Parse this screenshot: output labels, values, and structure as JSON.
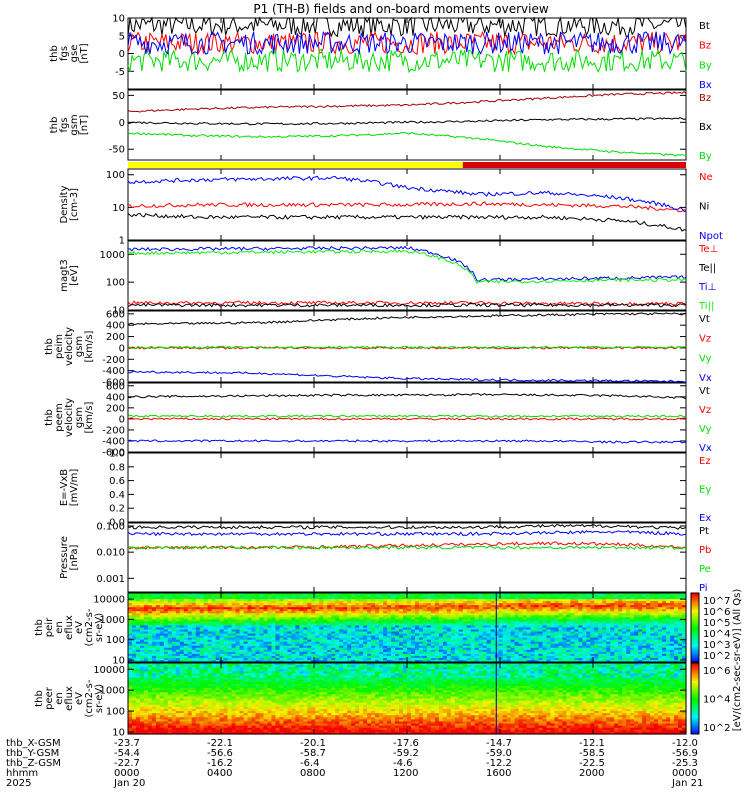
{
  "title": "P1 (TH-B) fields and on-board moments overview",
  "colors": {
    "black": "#000000",
    "red": "#ff0000",
    "green": "#00dd00",
    "blue": "#0000ff",
    "darkred": "#a00000",
    "yellow": "#ffff00",
    "bar_red": "#dd0000",
    "lightgreen": "#11ee11"
  },
  "chart_data": [
    {
      "id": "fgs-gse",
      "type": "line",
      "ylabel": [
        "thb",
        "fgs",
        "gse",
        "[nT]"
      ],
      "ylim": [
        -10,
        10
      ],
      "yticks": [
        -5,
        0,
        5,
        10
      ],
      "series": [
        {
          "name": "Bt",
          "color": "#000000",
          "level": 8
        },
        {
          "name": "Bz",
          "color": "#ff0000",
          "level": 3
        },
        {
          "name": "By",
          "color": "#00dd00",
          "level": -2
        },
        {
          "name": "Bx",
          "color": "#0000ff",
          "level": 3
        }
      ]
    },
    {
      "id": "fgs-gsm",
      "type": "line",
      "ylabel": [
        "thb",
        "fgs",
        "gsm",
        "[nT]"
      ],
      "ylim": [
        -70,
        60
      ],
      "yticks": [
        -50,
        0,
        50
      ],
      "series": [
        {
          "name": "Bz",
          "color": "#a00000",
          "values": [
            20,
            25,
            28,
            30,
            32,
            38,
            45,
            52,
            55
          ]
        },
        {
          "name": "Bx",
          "color": "#000000",
          "values": [
            0,
            -2,
            -3,
            -2,
            0,
            2,
            5,
            6,
            7
          ]
        },
        {
          "name": "By",
          "color": "#00dd00",
          "values": [
            -20,
            -25,
            -27,
            -25,
            -20,
            -30,
            -45,
            -55,
            -62
          ]
        }
      ]
    },
    {
      "id": "mode-bar",
      "type": "bar",
      "segments": [
        {
          "from": 0,
          "to": 0.6,
          "color": "#ffff00"
        },
        {
          "from": 0.6,
          "to": 1,
          "color": "#dd0000"
        }
      ]
    },
    {
      "id": "density",
      "type": "line",
      "log": true,
      "ylabel": [
        "Density",
        "[cm-3]"
      ],
      "ylim": [
        1,
        150
      ],
      "yticks": [
        1,
        10,
        100
      ],
      "series": [
        {
          "name": "Ne",
          "color": "#ff0000",
          "values": [
            11,
            12,
            12,
            12,
            12,
            13,
            12,
            11,
            8
          ]
        },
        {
          "name": "Ni",
          "color": "#000000",
          "values": [
            6,
            5,
            5,
            5,
            5,
            5,
            5,
            4,
            2
          ]
        },
        {
          "name": "Npot",
          "color": "#0000ff",
          "values": [
            60,
            70,
            75,
            80,
            40,
            25,
            28,
            20,
            8
          ]
        }
      ]
    },
    {
      "id": "magt3",
      "type": "line",
      "log": true,
      "ylabel": [
        "magt3",
        "[eV]"
      ],
      "ylim": [
        10,
        3000
      ],
      "yticks": [
        10,
        100,
        1000
      ],
      "series": [
        {
          "name": "Te⊥",
          "color": "#ff0000",
          "values": [
            18,
            18,
            18,
            18,
            18,
            18,
            17,
            17,
            17
          ]
        },
        {
          "name": "Te||",
          "color": "#000000",
          "values": [
            15,
            15,
            15,
            15,
            15,
            15,
            15,
            15,
            15
          ]
        },
        {
          "name": "Ti⊥",
          "color": "#0000ff",
          "values": [
            1500,
            1550,
            1600,
            1650,
            1700,
            120,
            130,
            140,
            150
          ]
        },
        {
          "name": "Ti||",
          "color": "#11ee11",
          "values": [
            1100,
            1150,
            1200,
            1250,
            1300,
            100,
            110,
            120,
            120
          ]
        }
      ]
    },
    {
      "id": "peim-velocity",
      "type": "line",
      "ylabel": [
        "thb",
        "peim",
        "velocity",
        "gsm",
        "[km/s]"
      ],
      "ylim": [
        -600,
        650
      ],
      "yticks": [
        -600,
        -400,
        -200,
        0,
        200,
        400,
        600
      ],
      "series": [
        {
          "name": "Vt",
          "color": "#000000",
          "values": [
            420,
            430,
            450,
            500,
            540,
            560,
            580,
            600,
            600
          ]
        },
        {
          "name": "Vz",
          "color": "#ff0000",
          "values": [
            0,
            0,
            0,
            0,
            0,
            0,
            0,
            0,
            0
          ]
        },
        {
          "name": "Vy",
          "color": "#00dd00",
          "values": [
            10,
            10,
            10,
            10,
            10,
            10,
            10,
            10,
            10
          ]
        },
        {
          "name": "Vx",
          "color": "#0000ff",
          "values": [
            -420,
            -430,
            -450,
            -500,
            -540,
            -560,
            -570,
            -580,
            -590
          ]
        }
      ]
    },
    {
      "id": "peem-velocity",
      "type": "line",
      "ylabel": [
        "thb",
        "peem",
        "velocity",
        "gsm",
        "[km/s]"
      ],
      "ylim": [
        -600,
        650
      ],
      "yticks": [
        -600,
        -400,
        -200,
        0,
        200,
        400,
        600
      ],
      "series": [
        {
          "name": "Vt",
          "color": "#000000",
          "values": [
            400,
            410,
            420,
            430,
            430,
            440,
            430,
            420,
            380
          ]
        },
        {
          "name": "Vz",
          "color": "#ff0000",
          "values": [
            0,
            0,
            0,
            0,
            0,
            0,
            0,
            0,
            0
          ]
        },
        {
          "name": "Vy",
          "color": "#00dd00",
          "values": [
            50,
            50,
            50,
            50,
            50,
            50,
            50,
            50,
            50
          ]
        },
        {
          "name": "Vx",
          "color": "#0000ff",
          "values": [
            -400,
            -400,
            -400,
            -400,
            -400,
            -400,
            -400,
            -420,
            -420
          ]
        }
      ]
    },
    {
      "id": "e-field",
      "type": "line",
      "ylabel": [
        "E=-VxB",
        "[mV/m]"
      ],
      "ylim": [
        0,
        1
      ],
      "yticks": [
        0,
        0.2,
        0.4,
        0.6,
        0.8,
        1.0
      ],
      "ytick_labels": [
        "0.0",
        "0.2",
        "0.4",
        "0.6",
        "0.8",
        "1.0"
      ],
      "series": [
        {
          "name": "Ez",
          "color": "#ff0000",
          "values": []
        },
        {
          "name": "Ey",
          "color": "#00dd00",
          "values": []
        },
        {
          "name": "Ex",
          "color": "#0000ff",
          "values": []
        }
      ]
    },
    {
      "id": "pressure",
      "type": "line",
      "log": true,
      "ylabel": [
        "Pressure",
        "[nPa]"
      ],
      "ylim": [
        0.0003,
        0.13
      ],
      "yticks": [
        0.001,
        0.01,
        0.1
      ],
      "ytick_labels": [
        "0.001",
        "0.010",
        "0.100"
      ],
      "series": [
        {
          "name": "Pt",
          "color": "#000000",
          "values": [
            0.09,
            0.09,
            0.09,
            0.09,
            0.09,
            0.09,
            0.1,
            0.1,
            0.08
          ]
        },
        {
          "name": "Pb",
          "color": "#ff0000",
          "values": [
            0.015,
            0.015,
            0.015,
            0.016,
            0.018,
            0.02,
            0.022,
            0.02,
            0.015
          ]
        },
        {
          "name": "Pe",
          "color": "#00dd00",
          "values": [
            0.015,
            0.015,
            0.015,
            0.015,
            0.015,
            0.015,
            0.015,
            0.015,
            0.015
          ]
        },
        {
          "name": "Pi",
          "color": "#0000ff",
          "values": [
            0.05,
            0.05,
            0.05,
            0.05,
            0.05,
            0.05,
            0.055,
            0.06,
            0.05
          ]
        }
      ]
    },
    {
      "id": "peir-spectrogram",
      "type": "heatmap",
      "log": true,
      "ylabel": [
        "thb",
        "peir",
        "en",
        "eflux",
        "eV",
        "(cm2-s-",
        "sr-eV)"
      ],
      "ylim": [
        8,
        20000
      ],
      "yticks": [
        10,
        100,
        1000,
        10000
      ]
    },
    {
      "id": "peer-spectrogram",
      "type": "heatmap",
      "log": true,
      "ylabel": [
        "thb",
        "peer",
        "en",
        "eflux",
        "eV",
        "(cm2-s-",
        "sr-eV)"
      ],
      "ylim": [
        8,
        20000
      ],
      "yticks": [
        10,
        100,
        1000,
        10000
      ]
    }
  ],
  "colorbar": {
    "label": "[eV/(cm2-sec-sr-eV)] (All Qs)",
    "upper_ticks": [
      "10^7",
      "10^6",
      "10^5",
      "10^4",
      "10^3",
      "10^2"
    ],
    "lower_ticks": [
      "10^6",
      "10^4",
      "10^2"
    ]
  },
  "ephemeris": {
    "rows": [
      {
        "label": "thb_X-GSM",
        "values": [
          "-23.7",
          "-22.1",
          "-20.1",
          "-17.6",
          "-14.7",
          "-12.1",
          "-12.0"
        ]
      },
      {
        "label": "thb_Y-GSM",
        "values": [
          "-54.4",
          "-56.6",
          "-58.7",
          "-59.2",
          "-59.0",
          "-58.5",
          "-56.9"
        ]
      },
      {
        "label": "thb_Z-GSM",
        "values": [
          "-22.7",
          "-16.2",
          "-6.4",
          "-4.6",
          "-12.2",
          "-22.5",
          "-25.3"
        ]
      },
      {
        "label": "hhmm",
        "values": [
          "0000",
          "0400",
          "0800",
          "1200",
          "1600",
          "2000",
          "0000"
        ]
      }
    ],
    "year": "2025",
    "dates": [
      {
        "label": "Jan 20",
        "at": 0
      },
      {
        "label": "Jan 21",
        "at": 6
      }
    ]
  }
}
